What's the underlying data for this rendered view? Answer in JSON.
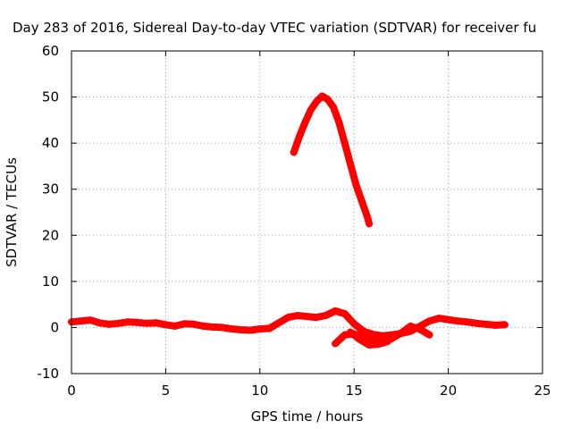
{
  "chart_data": {
    "type": "scatter",
    "title": "Day 283 of 2016, Sidereal Day-to-day VTEC variation (SDTVAR) for receiver fu",
    "xlabel": "GPS time / hours",
    "ylabel": "SDTVAR / TECUs",
    "xlim": [
      0,
      25
    ],
    "ylim": [
      -10,
      60
    ],
    "xticks": [
      "0",
      "5",
      "10",
      "15",
      "20",
      "25"
    ],
    "yticks": [
      "-10",
      "0",
      "10",
      "20",
      "30",
      "40",
      "50",
      "60"
    ],
    "grid": true,
    "marker_color": "#ff0000",
    "series": [
      {
        "points": [
          [
            0.0,
            1.2
          ],
          [
            0.5,
            1.4
          ],
          [
            1.0,
            1.6
          ],
          [
            1.5,
            1.0
          ],
          [
            2.0,
            0.7
          ],
          [
            2.5,
            0.9
          ],
          [
            3.0,
            1.2
          ],
          [
            3.5,
            1.1
          ],
          [
            4.0,
            0.9
          ],
          [
            4.5,
            1.0
          ],
          [
            5.0,
            0.6
          ],
          [
            5.5,
            0.3
          ],
          [
            6.0,
            0.8
          ],
          [
            6.5,
            0.7
          ],
          [
            7.0,
            0.3
          ],
          [
            7.5,
            0.1
          ],
          [
            8.0,
            0.0
          ],
          [
            8.5,
            -0.3
          ],
          [
            9.0,
            -0.5
          ],
          [
            9.5,
            -0.6
          ],
          [
            10.0,
            -0.3
          ],
          [
            10.5,
            -0.2
          ],
          [
            11.0,
            1.0
          ],
          [
            11.5,
            2.2
          ],
          [
            12.0,
            2.6
          ],
          [
            12.5,
            2.4
          ],
          [
            13.0,
            2.2
          ],
          [
            13.5,
            2.6
          ],
          [
            14.0,
            3.6
          ],
          [
            14.5,
            3.0
          ],
          [
            15.0,
            0.8
          ],
          [
            15.5,
            -0.8
          ],
          [
            16.0,
            -1.5
          ],
          [
            16.5,
            -1.8
          ],
          [
            17.0,
            -1.6
          ],
          [
            17.5,
            -1.3
          ],
          [
            18.0,
            -0.8
          ],
          [
            18.5,
            0.3
          ],
          [
            19.0,
            1.4
          ],
          [
            19.5,
            2.0
          ],
          [
            20.0,
            1.7
          ],
          [
            20.5,
            1.4
          ],
          [
            21.0,
            1.2
          ],
          [
            21.5,
            0.9
          ],
          [
            22.0,
            0.7
          ],
          [
            22.5,
            0.5
          ],
          [
            23.0,
            0.6
          ]
        ]
      },
      {
        "points": [
          [
            14.0,
            -3.5
          ],
          [
            14.5,
            -1.6
          ],
          [
            15.0,
            -1.4
          ],
          [
            15.5,
            -2.2
          ],
          [
            16.0,
            -3.0
          ],
          [
            16.5,
            -3.2
          ],
          [
            17.0,
            -2.4
          ],
          [
            17.5,
            -1.2
          ],
          [
            18.0,
            0.3
          ],
          [
            18.5,
            -0.4
          ],
          [
            19.0,
            -1.6
          ]
        ]
      },
      {
        "points": [
          [
            14.8,
            -1.0
          ],
          [
            15.3,
            -2.6
          ],
          [
            15.8,
            -3.8
          ],
          [
            16.3,
            -3.6
          ],
          [
            16.8,
            -3.0
          ]
        ]
      },
      {
        "points": [
          [
            11.8,
            38.0
          ],
          [
            12.1,
            41.5
          ],
          [
            12.4,
            44.5
          ],
          [
            12.7,
            47.2
          ],
          [
            13.0,
            49.0
          ],
          [
            13.3,
            50.2
          ],
          [
            13.6,
            49.5
          ],
          [
            13.9,
            47.8
          ],
          [
            14.2,
            44.5
          ],
          [
            14.5,
            40.0
          ],
          [
            14.8,
            35.5
          ],
          [
            15.1,
            31.0
          ],
          [
            15.4,
            27.5
          ],
          [
            15.7,
            24.0
          ],
          [
            15.8,
            22.5
          ]
        ]
      }
    ]
  }
}
